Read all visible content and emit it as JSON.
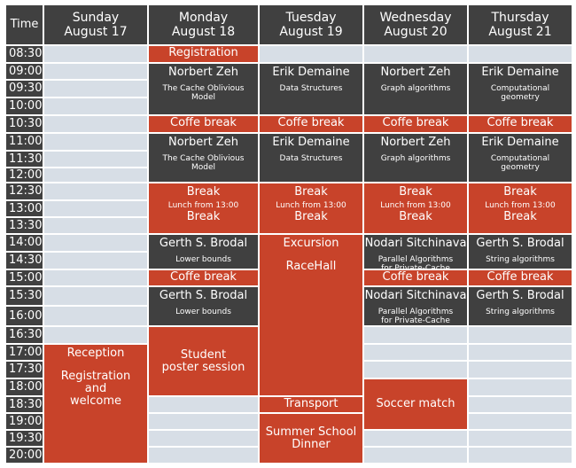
{
  "header": {
    "time_label": "Time"
  },
  "days": [
    {
      "name": "Sunday",
      "date": "August 17"
    },
    {
      "name": "Monday",
      "date": "August 18"
    },
    {
      "name": "Tuesday",
      "date": "August 19"
    },
    {
      "name": "Wednesday",
      "date": "August 20"
    },
    {
      "name": "Thursday",
      "date": "August 21"
    }
  ],
  "times": [
    "08:30",
    "09:00",
    "09:30",
    "10:00",
    "10:30",
    "11:00",
    "11:30",
    "12:00",
    "12:30",
    "13:00",
    "13:30",
    "14:00",
    "14:30",
    "15:00",
    "15:30",
    "16:00",
    "16:30",
    "17:00",
    "17:30",
    "18:00",
    "18:30",
    "19:00",
    "19:30",
    "20:00"
  ],
  "events": [
    {
      "day": 1,
      "start": 0,
      "span": 1,
      "color": "red",
      "title": "Registration"
    },
    {
      "day": 1,
      "start": 1,
      "span": 3,
      "color": "dark",
      "title": "Norbert Zeh",
      "subtitle": "The Cache Oblivious\nModel"
    },
    {
      "day": 2,
      "start": 1,
      "span": 3,
      "color": "dark",
      "title": "Erik Demaine",
      "subtitle": "Data Structures"
    },
    {
      "day": 3,
      "start": 1,
      "span": 3,
      "color": "dark",
      "title": "Norbert Zeh",
      "subtitle": "Graph algorithms"
    },
    {
      "day": 4,
      "start": 1,
      "span": 3,
      "color": "dark",
      "title": "Erik Demaine",
      "subtitle": "Computational\ngeometry"
    },
    {
      "day": 1,
      "start": 4,
      "span": 1,
      "color": "red",
      "title": "Coffe break"
    },
    {
      "day": 2,
      "start": 4,
      "span": 1,
      "color": "red",
      "title": "Coffe break"
    },
    {
      "day": 3,
      "start": 4,
      "span": 1,
      "color": "red",
      "title": "Coffe break"
    },
    {
      "day": 4,
      "start": 4,
      "span": 1,
      "color": "red",
      "title": "Coffe break"
    },
    {
      "day": 1,
      "start": 5,
      "span": 3,
      "color": "dark",
      "title": "Norbert Zeh",
      "subtitle": "The Cache Oblivious\nModel"
    },
    {
      "day": 2,
      "start": 5,
      "span": 3,
      "color": "dark",
      "title": "Erik Demaine",
      "subtitle": "Data Structures"
    },
    {
      "day": 3,
      "start": 5,
      "span": 3,
      "color": "dark",
      "title": "Norbert Zeh",
      "subtitle": "Graph algorithms"
    },
    {
      "day": 4,
      "start": 5,
      "span": 3,
      "color": "dark",
      "title": "Erik Demaine",
      "subtitle": "Computational\ngeometry"
    },
    {
      "day": 1,
      "start": 8,
      "span": 3,
      "color": "red",
      "title": "Break",
      "subtitle": "Lunch from 13:00",
      "title2": "Break"
    },
    {
      "day": 2,
      "start": 8,
      "span": 3,
      "color": "red",
      "title": "Break",
      "subtitle": "Lunch from 13:00",
      "title2": "Break"
    },
    {
      "day": 3,
      "start": 8,
      "span": 3,
      "color": "red",
      "title": "Break",
      "subtitle": "Lunch from 13:00",
      "title2": "Break"
    },
    {
      "day": 4,
      "start": 8,
      "span": 3,
      "color": "red",
      "title": "Break",
      "subtitle": "Lunch from 13:00",
      "title2": "Break"
    },
    {
      "day": 1,
      "start": 11,
      "span": 2,
      "color": "dark",
      "title": "Gerth S. Brodal",
      "subtitle": "Lower bounds"
    },
    {
      "day": 2,
      "start": 11,
      "span": 9,
      "color": "red",
      "title": "Excursion",
      "title2": "RaceHall"
    },
    {
      "day": 3,
      "start": 11,
      "span": 2,
      "color": "dark",
      "title": "Nodari Sitchinava",
      "subtitle": "Parallel Algorithms\nfor Private-Cache"
    },
    {
      "day": 4,
      "start": 11,
      "span": 2,
      "color": "dark",
      "title": "Gerth S. Brodal",
      "subtitle": "String algorithms"
    },
    {
      "day": 1,
      "start": 13,
      "span": 1,
      "color": "red",
      "title": "Coffe break"
    },
    {
      "day": 3,
      "start": 13,
      "span": 1,
      "color": "red",
      "title": "Coffe break"
    },
    {
      "day": 4,
      "start": 13,
      "span": 1,
      "color": "red",
      "title": "Coffe break"
    },
    {
      "day": 1,
      "start": 14,
      "span": 2,
      "color": "dark",
      "title": "Gerth S. Brodal",
      "subtitle": "Lower bounds"
    },
    {
      "day": 3,
      "start": 14,
      "span": 2,
      "color": "dark",
      "title": "Nodari Sitchinava",
      "subtitle": "Parallel Algorithms\nfor Private-Cache"
    },
    {
      "day": 4,
      "start": 14,
      "span": 2,
      "color": "dark",
      "title": "Gerth S. Brodal",
      "subtitle": "String algorithms"
    },
    {
      "day": 1,
      "start": 16,
      "span": 4,
      "color": "red",
      "title": "Student\nposter session"
    },
    {
      "day": 0,
      "start": 17,
      "span": 7,
      "color": "red",
      "title": "Reception",
      "title2": "Registration\nand\nwelcome"
    },
    {
      "day": 3,
      "start": 19,
      "span": 3,
      "color": "red",
      "title": "Soccer match"
    },
    {
      "day": 2,
      "start": 20,
      "span": 1,
      "color": "red",
      "title": "Transport"
    },
    {
      "day": 2,
      "start": 21,
      "span": 3,
      "color": "red",
      "title": "Summer School\nDinner"
    }
  ],
  "colors": {
    "header": "#404040",
    "session": "#404040",
    "highlight": "#c8432a",
    "empty": "#d7dee6",
    "gridline": "#ffffff"
  }
}
